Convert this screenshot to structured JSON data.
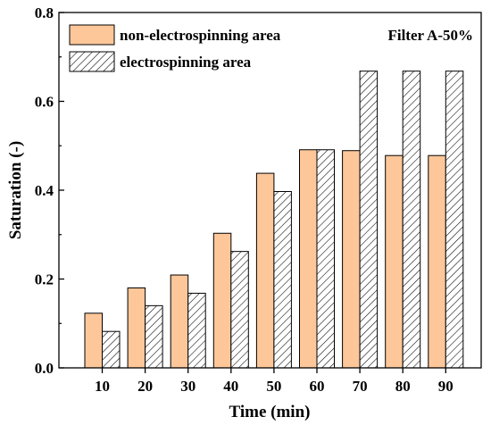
{
  "chart_data": {
    "type": "bar",
    "categories": [
      "10",
      "20",
      "30",
      "40",
      "50",
      "60",
      "70",
      "80",
      "90"
    ],
    "series": [
      {
        "name": "non-electrospinning area",
        "values": [
          0.123,
          0.18,
          0.209,
          0.303,
          0.438,
          0.491,
          0.489,
          0.478,
          0.478
        ],
        "color": "#fdc79a",
        "pattern": "solid"
      },
      {
        "name": "electrospinning area",
        "values": [
          0.082,
          0.14,
          0.168,
          0.262,
          0.397,
          0.491,
          0.668,
          0.668,
          0.668
        ],
        "color": "#ffffff",
        "pattern": "diagonal-hatch"
      }
    ],
    "xlabel": "Time (min)",
    "ylabel": "Saturation (-)",
    "ylim": [
      0.0,
      0.8
    ],
    "yticks": [
      "0.0",
      "0.2",
      "0.4",
      "0.6",
      "0.8"
    ],
    "annotation": "Filter A-50%",
    "legend_position": "top-left",
    "grid": false
  }
}
